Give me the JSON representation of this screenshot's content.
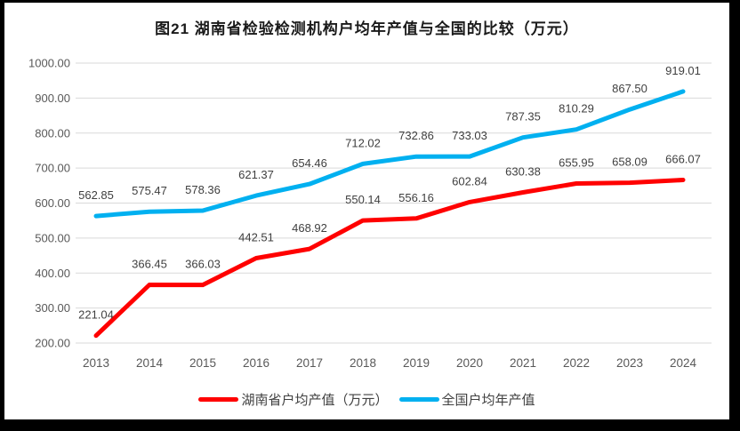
{
  "title": "图21 湖南省检验检测机构户均年产值与全国的比较（万元）",
  "chart_data": {
    "type": "line",
    "title": "图21 湖南省检验检测机构户均年产值与全国的比较（万元）",
    "categories": [
      "2013",
      "2014",
      "2015",
      "2016",
      "2017",
      "2018",
      "2019",
      "2020",
      "2021",
      "2022",
      "2023",
      "2024"
    ],
    "series": [
      {
        "name": "湖南省户均产值（万元）",
        "color": "#FF0000",
        "values": [
          221.04,
          366.45,
          366.03,
          442.51,
          468.92,
          550.14,
          556.16,
          602.84,
          630.38,
          655.95,
          658.09,
          666.07
        ]
      },
      {
        "name": "全国户均年产值",
        "color": "#00B0F0",
        "values": [
          562.85,
          575.47,
          578.36,
          621.37,
          654.46,
          712.02,
          732.86,
          733.03,
          787.35,
          810.29,
          867.5,
          919.01
        ]
      }
    ],
    "ylabel": "",
    "xlabel": "",
    "ylim": [
      200,
      1000
    ],
    "ytick_step": 100,
    "ytick_decimals": 2,
    "data_labels_decimals": 2,
    "grid": true,
    "legend_position": "bottom",
    "colors": {
      "gridline": "#D9D9D9",
      "axis_label": "#595959",
      "data_label": "#3F3F3F",
      "frame_border": "#000000",
      "background": "#FFFFFF"
    }
  }
}
